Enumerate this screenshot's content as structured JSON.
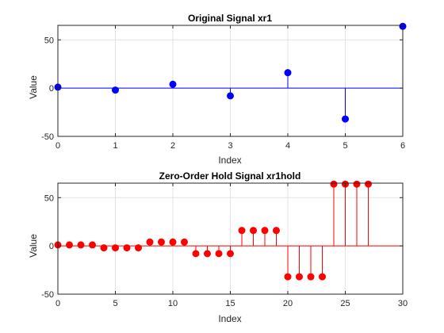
{
  "figure": {
    "background": "#ffffff"
  },
  "chart_data": [
    {
      "type": "stem",
      "title": "Original Signal xr1",
      "xlabel": "Index",
      "ylabel": "Value",
      "xlim": [
        0,
        6
      ],
      "ylim": [
        -50,
        65
      ],
      "xticks": [
        0,
        1,
        2,
        3,
        4,
        5,
        6
      ],
      "yticks": [
        -50,
        0,
        50
      ],
      "grid": true,
      "color": "#0000ff",
      "x": [
        0,
        1,
        2,
        3,
        4,
        5,
        6
      ],
      "values": [
        1,
        -2,
        4,
        -8,
        16,
        -32,
        64
      ]
    },
    {
      "type": "stem",
      "title": "Zero-Order Hold Signal xr1hold",
      "xlabel": "Index",
      "ylabel": "Value",
      "xlim": [
        0,
        30
      ],
      "ylim": [
        -50,
        65
      ],
      "xticks": [
        0,
        5,
        10,
        15,
        20,
        25,
        30
      ],
      "yticks": [
        -50,
        0,
        50
      ],
      "grid": true,
      "color": "#ff0000",
      "x": [
        0,
        1,
        2,
        3,
        4,
        5,
        6,
        7,
        8,
        9,
        10,
        11,
        12,
        13,
        14,
        15,
        16,
        17,
        18,
        19,
        20,
        21,
        22,
        23,
        24,
        25,
        26,
        27
      ],
      "values": [
        1,
        1,
        1,
        1,
        -2,
        -2,
        -2,
        -2,
        4,
        4,
        4,
        4,
        -8,
        -8,
        -8,
        -8,
        16,
        16,
        16,
        16,
        -32,
        -32,
        -32,
        -32,
        64,
        64,
        64,
        64
      ]
    }
  ]
}
